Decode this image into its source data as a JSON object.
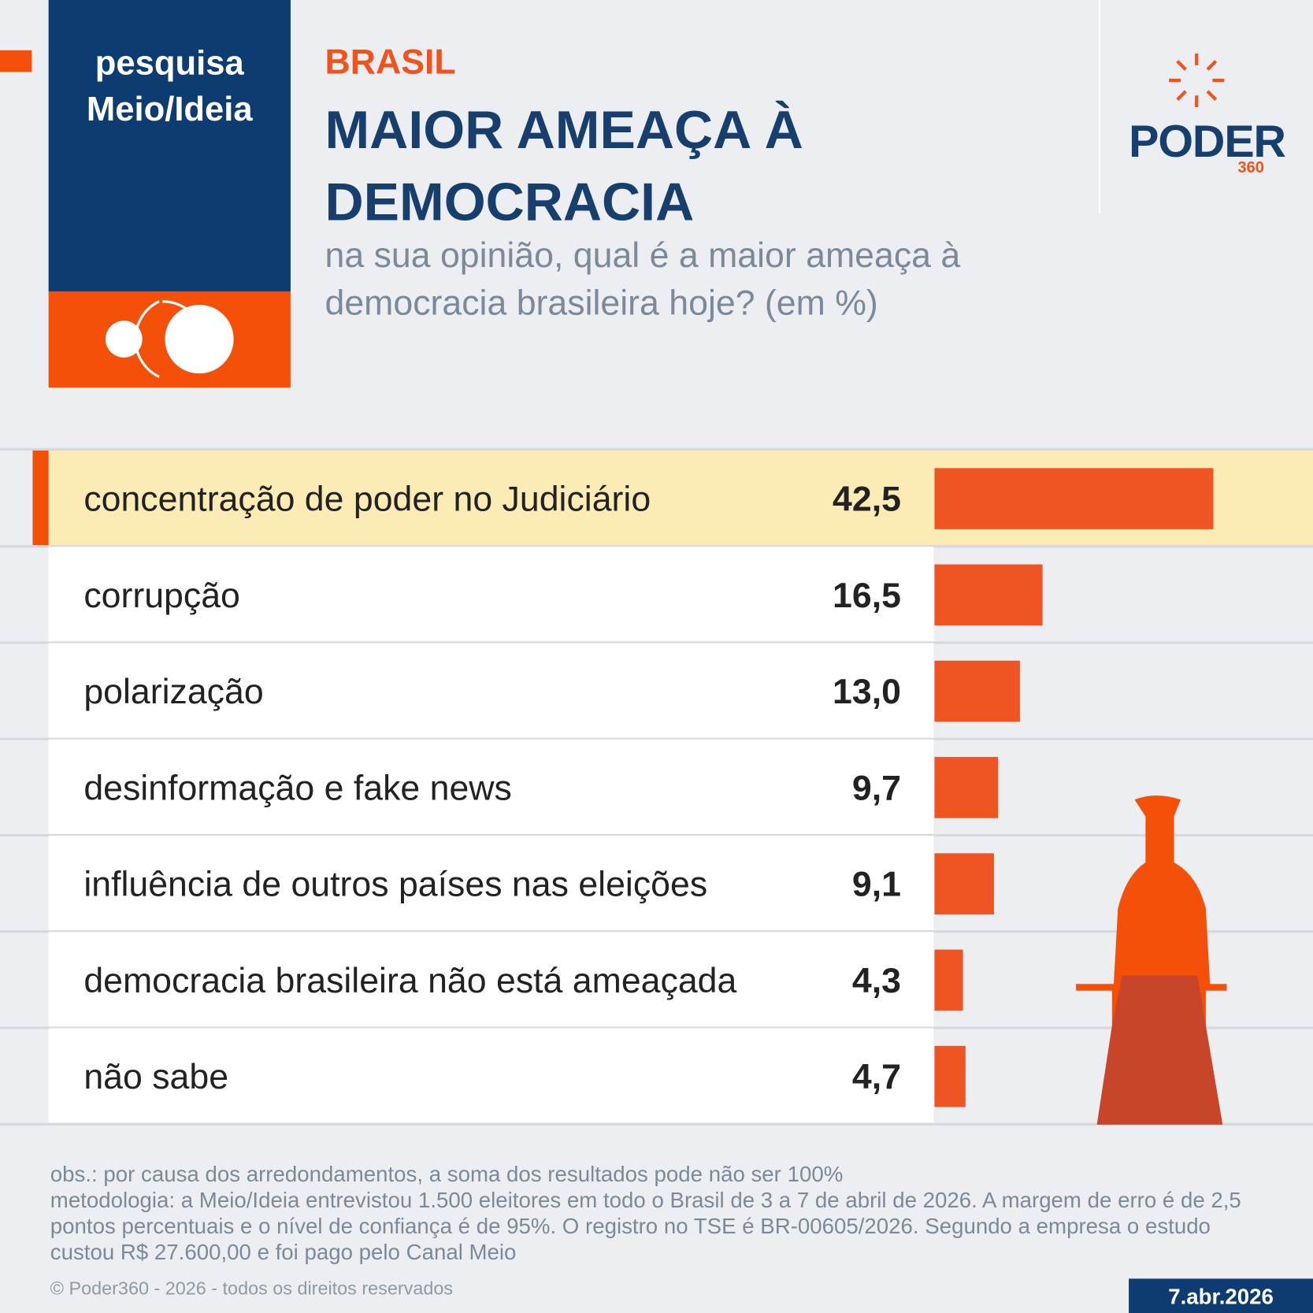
{
  "header": {
    "badge": [
      "pesquisa",
      "Meio/Ideia"
    ],
    "logo": "PODER",
    "logo_number": "360"
  },
  "chart_data": {
    "type": "bar",
    "orientation": "horizontal",
    "kicker": "BRASIL",
    "title": "MAIOR AMEAÇA À DEMOCRACIA",
    "subtitle": "na sua opinião, qual é a maior ameaça à democracia brasileira hoje? (em %)",
    "categories": [
      "concentração de poder no Judiciário",
      "corrupção",
      "polarização",
      "desinformação e fake news",
      "influência de outros países nas eleições",
      "democracia brasileira não está ameaçada",
      "não sabe"
    ],
    "values": [
      42.5,
      16.5,
      13.0,
      9.7,
      9.1,
      4.3,
      4.7
    ],
    "value_labels": [
      "42,5",
      "16,5",
      "13,0",
      "9,7",
      "9,1",
      "4,3",
      "4,7"
    ],
    "color": "#ef5523"
  },
  "footer": {
    "notes": [
      "obs.: por causa dos arredondamentos, a soma dos resultados pode não ser 100%",
      "metodologia: a Meio/Ideia entrevistou 1.500 eleitores em todo o Brasil de 3 a 7 de abril de 2026. A margem de erro é de 2,5 pontos percentuais e o nível de confiança é de 95%. O registro no TSE é BR-00605/2026. Segundo a empresa o estudo custou R$ 27.600,00 e foi pago pelo Canal Meio"
    ],
    "copyright": "© Poder360 - 2026 - todos os direitos reservados",
    "date": "7.abr.2026"
  }
}
